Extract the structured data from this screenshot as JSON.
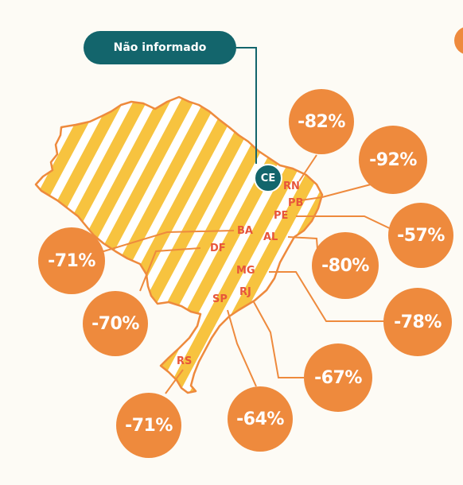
{
  "legend": {
    "label": "Não informado"
  },
  "map": {
    "colors": {
      "stripe": "#F7C33F",
      "outline": "#EE8A3D",
      "highlight": "#13656C",
      "label": "#E7553A"
    }
  },
  "states": [
    {
      "code": "CE",
      "value": ""
    },
    {
      "code": "RN",
      "value": "-82%"
    },
    {
      "code": "PB",
      "value": "-92%"
    },
    {
      "code": "PE",
      "value": "-57%"
    },
    {
      "code": "AL",
      "value": "-80%"
    },
    {
      "code": "MG",
      "value": "-78%"
    },
    {
      "code": "RJ",
      "value": "-67%"
    },
    {
      "code": "SP",
      "value": "-64%"
    },
    {
      "code": "RS",
      "value": "-71%"
    },
    {
      "code": "DF",
      "value": "-70%"
    },
    {
      "code": "BA",
      "value": "-71%"
    }
  ]
}
